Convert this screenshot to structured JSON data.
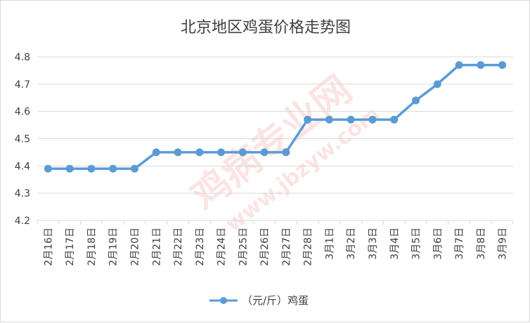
{
  "colors": {
    "series": "#5b9bd5",
    "grid": "#d9d9d9",
    "text": "#404040",
    "watermark": "#e84a4a"
  },
  "watermark": {
    "main": "鸡病专业网",
    "url": "www.jbzyw.com"
  },
  "chart_data": {
    "type": "line",
    "title": "北京地区鸡蛋价格走势图",
    "xlabel": "",
    "ylabel": "",
    "ylim": [
      4.2,
      4.8
    ],
    "yticks": [
      "4.2",
      "4.3",
      "4.4",
      "4.5",
      "4.6",
      "4.7",
      "4.8"
    ],
    "grid": true,
    "legend_position": "bottom",
    "categories": [
      "2月16日",
      "2月17日",
      "2月18日",
      "2月19日",
      "2月20日",
      "2月21日",
      "2月22日",
      "2月23日",
      "2月24日",
      "2月25日",
      "2月26日",
      "2月27日",
      "2月28日",
      "3月1日",
      "3月2日",
      "3月3日",
      "3月4日",
      "3月5日",
      "3月6日",
      "3月7日",
      "3月8日",
      "3月9日"
    ],
    "series": [
      {
        "name": "（元/斤）鸡蛋",
        "values": [
          4.39,
          4.39,
          4.39,
          4.39,
          4.39,
          4.45,
          4.45,
          4.45,
          4.45,
          4.45,
          4.45,
          4.45,
          4.57,
          4.57,
          4.57,
          4.57,
          4.57,
          4.64,
          4.7,
          4.77,
          4.77,
          4.77
        ]
      }
    ]
  }
}
